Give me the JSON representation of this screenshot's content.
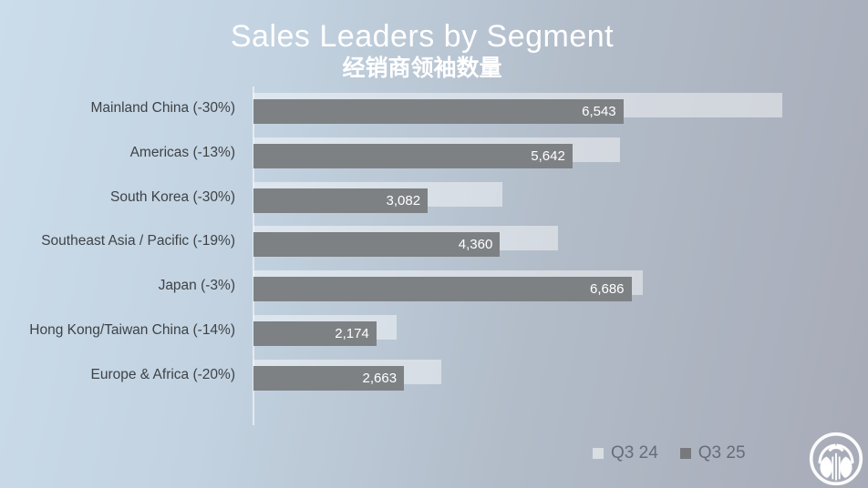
{
  "header": {
    "title": "Sales Leaders by Segment",
    "subtitle_zh": "经销商领袖数量"
  },
  "legend": {
    "items": [
      {
        "label": "Q3 24",
        "color": "#d9dee3"
      },
      {
        "label": "Q3 25",
        "color": "#77797c"
      }
    ]
  },
  "logo": {
    "name": "nu-skin-fountain-logo",
    "color": "#ffffff"
  },
  "chart_data": {
    "type": "bar",
    "orientation": "horizontal",
    "title": "Sales Leaders by Segment",
    "subtitle": "经销商领袖数量",
    "categories": [
      "Mainland China (-30%)",
      "Americas (-13%)",
      "South Korea (-30%)",
      "Southeast Asia / Pacific (-19%)",
      "Japan (-3%)",
      "Hong Kong/Taiwan China (-14%)",
      "Europe & Africa (-20%)"
    ],
    "percent_change": [
      -30,
      -13,
      -30,
      -19,
      -3,
      -14,
      -20
    ],
    "series": [
      {
        "name": "Q3 24",
        "values": [
          9347,
          6485,
          4403,
          5383,
          6893,
          2528,
          3329
        ],
        "values_note": "estimated from bar lengths / percent change; not labeled on chart",
        "css_color": "rgba(255,255,255,0.45)",
        "swatch_color": "#d9dee3"
      },
      {
        "name": "Q3 25",
        "values": [
          6543,
          5642,
          3082,
          4360,
          6686,
          2174,
          2663
        ],
        "value_labels": [
          "6,543",
          "5,642",
          "3,082",
          "4,360",
          "6,686",
          "2,174",
          "2,663"
        ],
        "css_color": "#7e8184",
        "swatch_color": "#77797c"
      }
    ],
    "xlim": [
      0,
      10000
    ],
    "grid": false,
    "legend_position": "bottom-right",
    "value_label_color": "#ffffff"
  }
}
